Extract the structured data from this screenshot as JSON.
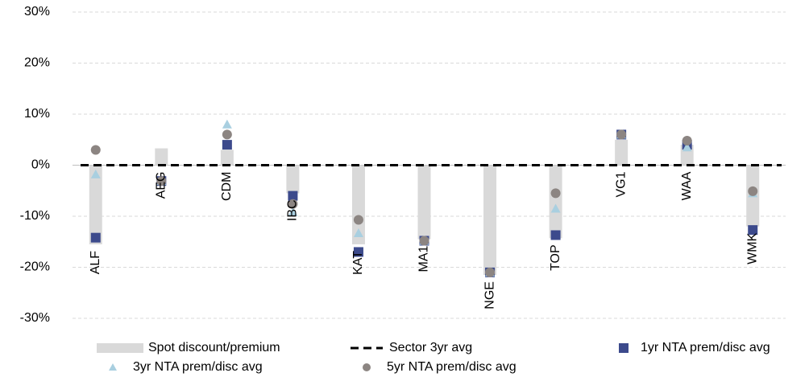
{
  "chart_data": {
    "type": "combo",
    "categories": [
      "ALF",
      "AEG",
      "CDM",
      "IBC",
      "KAT",
      "MA1",
      "NGE",
      "TOP",
      "VG1",
      "WAA",
      "WMK"
    ],
    "series": [
      {
        "name": "Spot discount/premium",
        "type": "bar",
        "color": "#d9d9d9",
        "values": [
          -15.5,
          3.3,
          3,
          -5.5,
          -15.5,
          -14.5,
          -21.5,
          -14.3,
          5,
          4,
          -12
        ]
      },
      {
        "name": "Sector 3yr avg",
        "type": "line",
        "color": "#000000",
        "values": [
          0,
          0,
          0,
          0,
          0,
          0,
          0,
          0,
          0,
          0,
          0
        ]
      },
      {
        "name": "1yr NTA prem/disc avg",
        "type": "scatter",
        "marker": "square",
        "color": "#3c4a8c",
        "values": [
          -14.2,
          -3.1,
          4,
          -6,
          -17,
          -14.8,
          -21,
          -13.7,
          6,
          4,
          -12.7
        ]
      },
      {
        "name": "3yr NTA prem/disc avg",
        "type": "scatter",
        "marker": "triangle",
        "color": "#a9cfe0",
        "values": [
          -1.8,
          -3.1,
          8,
          -9.2,
          -13.3,
          -14.8,
          -21,
          -8.5,
          6,
          3.5,
          -5.5
        ]
      },
      {
        "name": "5yr NTA prem/disc avg",
        "type": "scatter",
        "marker": "circle",
        "color": "#8c8582",
        "values": [
          3,
          -3.1,
          6,
          -7.6,
          -10.7,
          -14.8,
          -21,
          -5.5,
          6,
          4.8,
          -5.1
        ]
      }
    ],
    "ylim": [
      -30,
      30
    ],
    "yticks": [
      {
        "value": -30,
        "label": "-30%"
      },
      {
        "value": -20,
        "label": "-20%"
      },
      {
        "value": -10,
        "label": "-10%"
      },
      {
        "value": 0,
        "label": "0%"
      },
      {
        "value": 10,
        "label": "10%"
      },
      {
        "value": 20,
        "label": "20%"
      },
      {
        "value": 30,
        "label": "30%"
      }
    ],
    "grid": true
  }
}
